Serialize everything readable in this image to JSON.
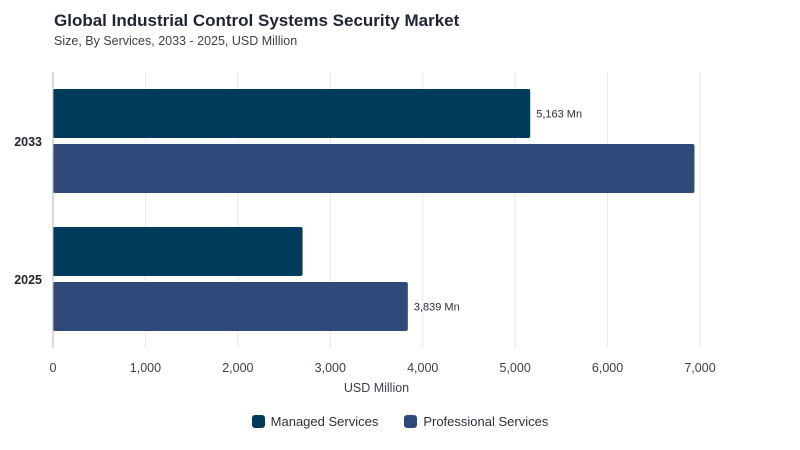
{
  "colors": {
    "managed": "#003b5c",
    "professional": "#2f4a7a",
    "grid": "#e8e8ea",
    "axis": "#b5b5b8"
  },
  "chart_data": {
    "type": "bar",
    "orientation": "horizontal",
    "title": "Global Industrial Control Systems Security Market",
    "subtitle": "Size, By Services, 2033 - 2025, USD Million",
    "xlabel": "USD Million",
    "ylabel": "",
    "categories": [
      "2033",
      "2025"
    ],
    "series": [
      {
        "name": "Managed Services",
        "values": [
          5163,
          2700
        ],
        "labels": [
          "5,163 Mn",
          ""
        ]
      },
      {
        "name": "Professional Services",
        "values": [
          6940,
          3839
        ],
        "labels": [
          "",
          "3,839 Mn"
        ]
      }
    ],
    "xlim": [
      0,
      7000
    ],
    "xticks": [
      0,
      1000,
      2000,
      3000,
      4000,
      5000,
      6000,
      7000
    ],
    "xtick_labels": [
      "0",
      "1,000",
      "2,000",
      "3,000",
      "4,000",
      "5,000",
      "6,000",
      "7,000"
    ],
    "grid": true,
    "legend_position": "bottom-center"
  }
}
